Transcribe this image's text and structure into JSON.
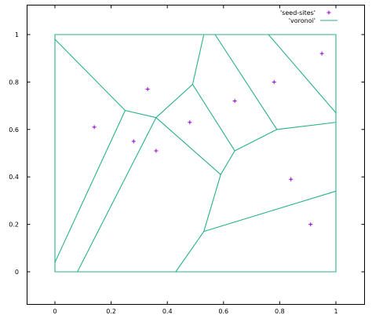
{
  "chart_data": {
    "type": "scatter",
    "title": "",
    "xlabel": "",
    "ylabel": "",
    "xlim": [
      -0.1,
      1.1
    ],
    "ylim": [
      -0.13,
      1.1
    ],
    "x_ticks": [
      "0",
      "0.2",
      "0.4",
      "0.6",
      "0.8",
      "1"
    ],
    "y_ticks": [
      "0",
      "0.2",
      "0.4",
      "0.6",
      "0.8",
      "1"
    ],
    "legend_placement": "top-right",
    "grid": false,
    "series": [
      {
        "name": "'seed-sites'",
        "kind": "points",
        "marker": "plus",
        "color": "#9400d3",
        "points": [
          [
            0.14,
            0.61
          ],
          [
            0.28,
            0.55
          ],
          [
            0.33,
            0.77
          ],
          [
            0.36,
            0.51
          ],
          [
            0.48,
            0.63
          ],
          [
            0.64,
            0.72
          ],
          [
            0.78,
            0.8
          ],
          [
            0.95,
            0.92
          ],
          [
            0.84,
            0.39
          ],
          [
            0.91,
            0.2
          ]
        ]
      },
      {
        "name": "'voronoi'",
        "kind": "segments",
        "color": "#2ab08a",
        "segments": [
          [
            [
              0,
              0
            ],
            [
              1,
              0
            ]
          ],
          [
            [
              1,
              0
            ],
            [
              1,
              1
            ]
          ],
          [
            [
              1,
              1
            ],
            [
              0,
              1
            ]
          ],
          [
            [
              0,
              1
            ],
            [
              0,
              0
            ]
          ],
          [
            [
              0,
              0.98
            ],
            [
              0.25,
              0.68
            ]
          ],
          [
            [
              0.25,
              0.68
            ],
            [
              0,
              0.04
            ]
          ],
          [
            [
              0.25,
              0.68
            ],
            [
              0.36,
              0.65
            ]
          ],
          [
            [
              0.36,
              0.65
            ],
            [
              0.08,
              0
            ]
          ],
          [
            [
              0.36,
              0.65
            ],
            [
              0.49,
              0.79
            ]
          ],
          [
            [
              0.49,
              0.79
            ],
            [
              0.53,
              1
            ]
          ],
          [
            [
              0.36,
              0.65
            ],
            [
              0.59,
              0.41
            ]
          ],
          [
            [
              0.49,
              0.79
            ],
            [
              0.64,
              0.51
            ]
          ],
          [
            [
              0.64,
              0.51
            ],
            [
              0.59,
              0.41
            ]
          ],
          [
            [
              0.59,
              0.41
            ],
            [
              0.53,
              0.17
            ]
          ],
          [
            [
              0.53,
              0.17
            ],
            [
              0.43,
              0
            ]
          ],
          [
            [
              0.53,
              0.17
            ],
            [
              1,
              0.34
            ]
          ],
          [
            [
              0.64,
              0.51
            ],
            [
              0.79,
              0.6
            ]
          ],
          [
            [
              0.79,
              0.6
            ],
            [
              1,
              0.63
            ]
          ],
          [
            [
              0.79,
              0.6
            ],
            [
              0.57,
              1
            ]
          ],
          [
            [
              0.76,
              1
            ],
            [
              1,
              0.67
            ]
          ]
        ]
      }
    ]
  }
}
